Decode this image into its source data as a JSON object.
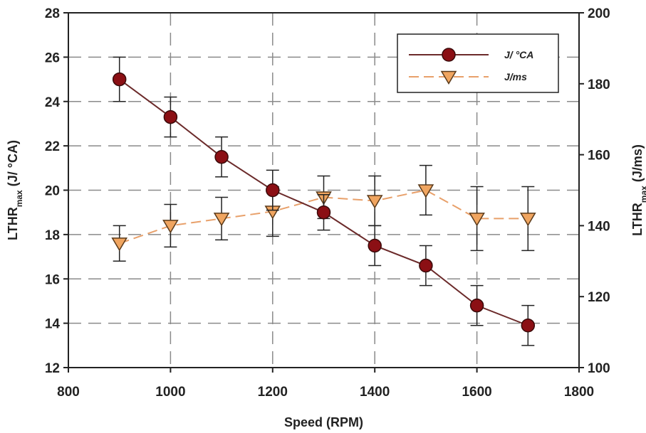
{
  "chart_data": {
    "type": "line",
    "xlabel": "Speed (RPM)",
    "ylabel_left": {
      "main": "LTHR",
      "sub": "max",
      "rest": " (J/ °CA)"
    },
    "ylabel_right": {
      "main": "LTHR",
      "sub": "max",
      "rest": " (J/ms)"
    },
    "xlim": [
      800,
      1800
    ],
    "xticks": [
      800,
      1000,
      1200,
      1400,
      1600,
      1800
    ],
    "ylim_left": [
      12,
      28
    ],
    "yticks_left": [
      12,
      14,
      16,
      18,
      20,
      22,
      24,
      26,
      28
    ],
    "ylim_right": [
      100,
      200
    ],
    "yticks_right": [
      100,
      120,
      140,
      160,
      180,
      200
    ],
    "grid": true,
    "legend_position": "top-right",
    "series": [
      {
        "name": "J/ °CA",
        "axis": "left",
        "marker": "circle",
        "color": "#8b0f14",
        "line_color": "#6b2a2a",
        "x": [
          900,
          1000,
          1100,
          1200,
          1300,
          1400,
          1500,
          1600,
          1700
        ],
        "y": [
          25.0,
          23.3,
          21.5,
          20.0,
          19.0,
          17.5,
          16.6,
          14.8,
          13.9
        ],
        "err": [
          1.0,
          0.9,
          0.9,
          0.9,
          0.8,
          0.9,
          0.9,
          0.9,
          0.9
        ]
      },
      {
        "name": "J/ms",
        "axis": "right",
        "marker": "triangle-down",
        "color": "#f0a560",
        "line_color": "#e8a06a",
        "x": [
          900,
          1000,
          1100,
          1200,
          1300,
          1400,
          1500,
          1600,
          1700
        ],
        "y": [
          135,
          140,
          142,
          144,
          148,
          147,
          150,
          142,
          142
        ],
        "err": [
          5,
          6,
          6,
          7,
          6,
          7,
          7,
          9,
          9
        ]
      }
    ]
  }
}
